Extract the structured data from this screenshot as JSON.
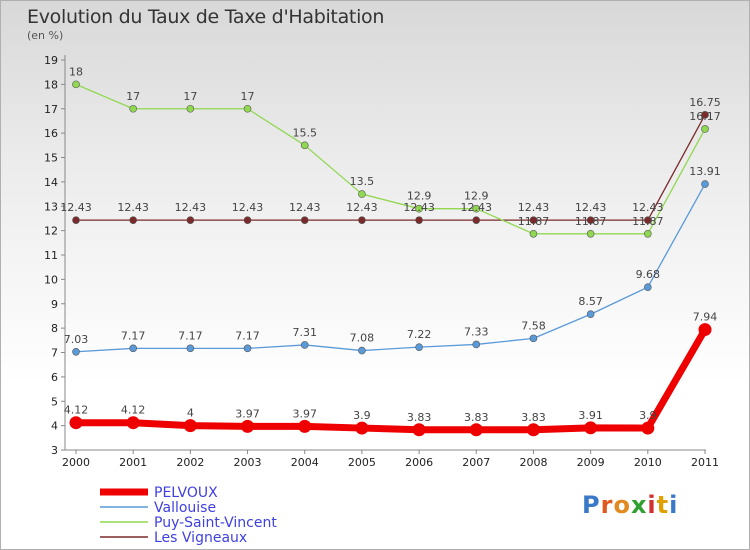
{
  "title": "Evolution du Taux de Taxe d'Habitation",
  "unit": "(en %)",
  "logo": {
    "letters": [
      "P",
      "r",
      "o",
      "x",
      "i",
      "t",
      "i"
    ],
    "colors": [
      "#3a78c8",
      "#e05a20",
      "#e08a20",
      "#30a030",
      "#d03030",
      "#e0a000",
      "#3a78c8"
    ]
  },
  "chart_data": {
    "type": "line",
    "title": "Evolution du Taux de Taxe d'Habitation",
    "ylabel": "(en %)",
    "xlabel": "",
    "x": [
      "2000",
      "2001",
      "2002",
      "2003",
      "2004",
      "2005",
      "2006",
      "2007",
      "2008",
      "2009",
      "2010",
      "2011"
    ],
    "ylim": [
      3,
      19
    ],
    "yticks": [
      3,
      4,
      5,
      6,
      7,
      8,
      9,
      10,
      11,
      12,
      13,
      14,
      15,
      16,
      17,
      18,
      19
    ],
    "grid": false,
    "legend_position": "bottom-left",
    "series": [
      {
        "name": "PELVOUX",
        "color": "#ee0000",
        "bold": true,
        "values": [
          4.12,
          4.12,
          4,
          3.97,
          3.97,
          3.9,
          3.83,
          3.83,
          3.83,
          3.91,
          3.9,
          7.94
        ],
        "labels": [
          "4.12",
          "4.12",
          "4",
          "3.97",
          "3.97",
          "3.9",
          "3.83",
          "3.83",
          "3.83",
          "3.91",
          "3.9",
          "7.94"
        ]
      },
      {
        "name": "Vallouise",
        "color": "#5a9ad8",
        "bold": false,
        "values": [
          7.03,
          7.17,
          7.17,
          7.17,
          7.31,
          7.08,
          7.22,
          7.33,
          7.58,
          8.57,
          9.68,
          13.91
        ],
        "labels": [
          "7.03",
          "7.17",
          "7.17",
          "7.17",
          "7.31",
          "7.08",
          "7.22",
          "7.33",
          "7.58",
          "8.57",
          "9.68",
          "13.91"
        ]
      },
      {
        "name": "Puy-Saint-Vincent",
        "color": "#90d850",
        "bold": false,
        "values": [
          18,
          17,
          17,
          17,
          15.5,
          13.5,
          12.9,
          12.9,
          11.87,
          11.87,
          11.87,
          16.17
        ],
        "labels": [
          "18",
          "17",
          "17",
          "17",
          "15.5",
          "13.5",
          "12.9",
          "12.9",
          "11.87",
          "11.87",
          "11.87",
          "16.17"
        ]
      },
      {
        "name": "Les Vigneaux",
        "color": "#7a2a2a",
        "bold": false,
        "values": [
          12.43,
          12.43,
          12.43,
          12.43,
          12.43,
          12.43,
          12.43,
          12.43,
          12.43,
          12.43,
          12.43,
          16.75
        ],
        "labels": [
          "12.43",
          "12.43",
          "12.43",
          "12.43",
          "12.43",
          "12.43",
          "12.43",
          "12.43",
          "12.43",
          "12.43",
          "12.43",
          "16.75"
        ]
      }
    ]
  }
}
